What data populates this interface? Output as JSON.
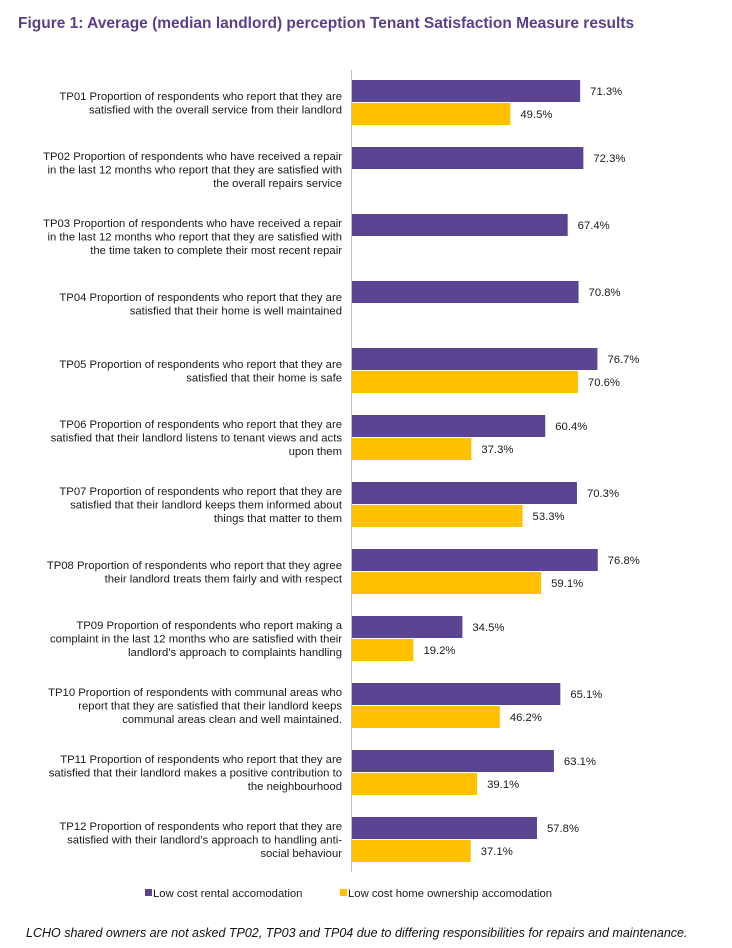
{
  "title": "Figure 1: Average (median landlord) perception Tenant Satisfaction Measure results",
  "footnote": "LCHO shared owners are not asked TP02, TP03 and TP04 due to differing responsibilities for repairs and maintenance.",
  "chart_data": {
    "type": "bar",
    "orientation": "horizontal",
    "title": "Figure 1: Average (median landlord) perception Tenant Satisfaction Measure results",
    "xlabel": "",
    "ylabel": "",
    "xlim": [
      0,
      100
    ],
    "grid": false,
    "legend_position": "bottom",
    "value_suffix": "%",
    "categories": [
      [
        "TP01 Proportion of respondents who report that they are",
        "satisfied with the overall service from their landlord"
      ],
      [
        "TP02 Proportion of respondents who have received a repair",
        "in the last 12 months who report that they are satisfied with",
        "the overall repairs service"
      ],
      [
        "TP03 Proportion of respondents who have received a repair",
        "in the last 12 months who report that they are satisfied with",
        "the time taken to complete their most recent repair"
      ],
      [
        "TP04 Proportion of respondents who report that they are",
        "satisfied that their home is well maintained"
      ],
      [
        "TP05 Proportion of respondents who report that they are",
        "satisfied that their home is safe"
      ],
      [
        "TP06 Proportion of respondents who report that they are",
        "satisfied that their landlord listens to tenant views and acts",
        "upon them"
      ],
      [
        "TP07 Proportion of respondents who report that they are",
        "satisfied that their landlord keeps them informed about",
        "things that matter to them"
      ],
      [
        "TP08 Proportion of respondents who report that they agree",
        "their landlord treats them fairly and with respect"
      ],
      [
        "TP09 Proportion of respondents who report making a",
        "complaint in the last 12 months who are satisfied with their",
        "landlord’s approach to complaints handling"
      ],
      [
        "TP10 Proportion of respondents with communal areas who",
        "report that they are satisfied that their landlord keeps",
        "communal areas clean and well maintained."
      ],
      [
        "TP11 Proportion of respondents who report that they are",
        "satisfied that their landlord makes a positive contribution to",
        "the neighbourhood"
      ],
      [
        "TP12 Proportion of respondents who report that they are",
        "satisfied with their landlord’s approach to handling anti-",
        "social behaviour"
      ]
    ],
    "series": [
      {
        "name": "Low cost rental accomodation",
        "color": "#5B4491",
        "values": [
          71.3,
          72.3,
          67.4,
          70.8,
          76.7,
          60.4,
          70.3,
          76.8,
          34.5,
          65.1,
          63.1,
          57.8
        ]
      },
      {
        "name": "Low cost home ownership accomodation",
        "color": "#FFC000",
        "values": [
          49.5,
          null,
          null,
          null,
          70.6,
          37.3,
          53.3,
          59.1,
          19.2,
          46.2,
          39.1,
          37.1
        ]
      }
    ]
  }
}
